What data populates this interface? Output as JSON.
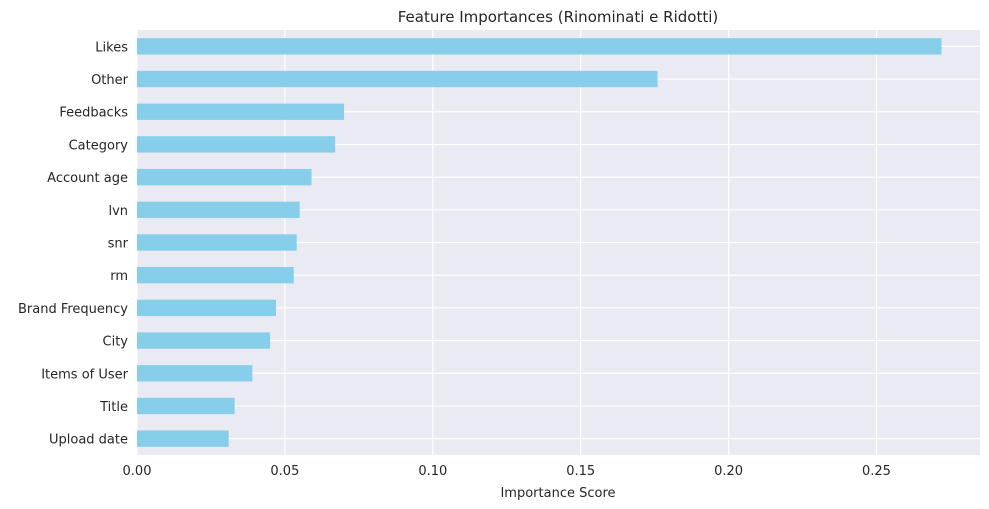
{
  "chart_data": {
    "type": "bar",
    "orientation": "horizontal",
    "title": "Feature Importances (Rinominati e Ridotti)",
    "xlabel": "Importance Score",
    "ylabel": "",
    "categories": [
      "Likes",
      "Other",
      "Feedbacks",
      "Category",
      "Account age",
      "lvn",
      "snr",
      "rm",
      "Brand Frequency",
      "City",
      "Items of User",
      "Title",
      "Upload date"
    ],
    "values": [
      0.272,
      0.176,
      0.07,
      0.067,
      0.059,
      0.055,
      0.054,
      0.053,
      0.047,
      0.045,
      0.039,
      0.033,
      0.031
    ],
    "xlim": [
      0,
      0.285
    ],
    "xticks": [
      0.0,
      0.05,
      0.1,
      0.15,
      0.2,
      0.25
    ],
    "xtick_labels": [
      "0.00",
      "0.05",
      "0.10",
      "0.15",
      "0.20",
      "0.25"
    ],
    "bar_color": "#87ceeb",
    "grid": true,
    "background": "#eaeaf2"
  }
}
